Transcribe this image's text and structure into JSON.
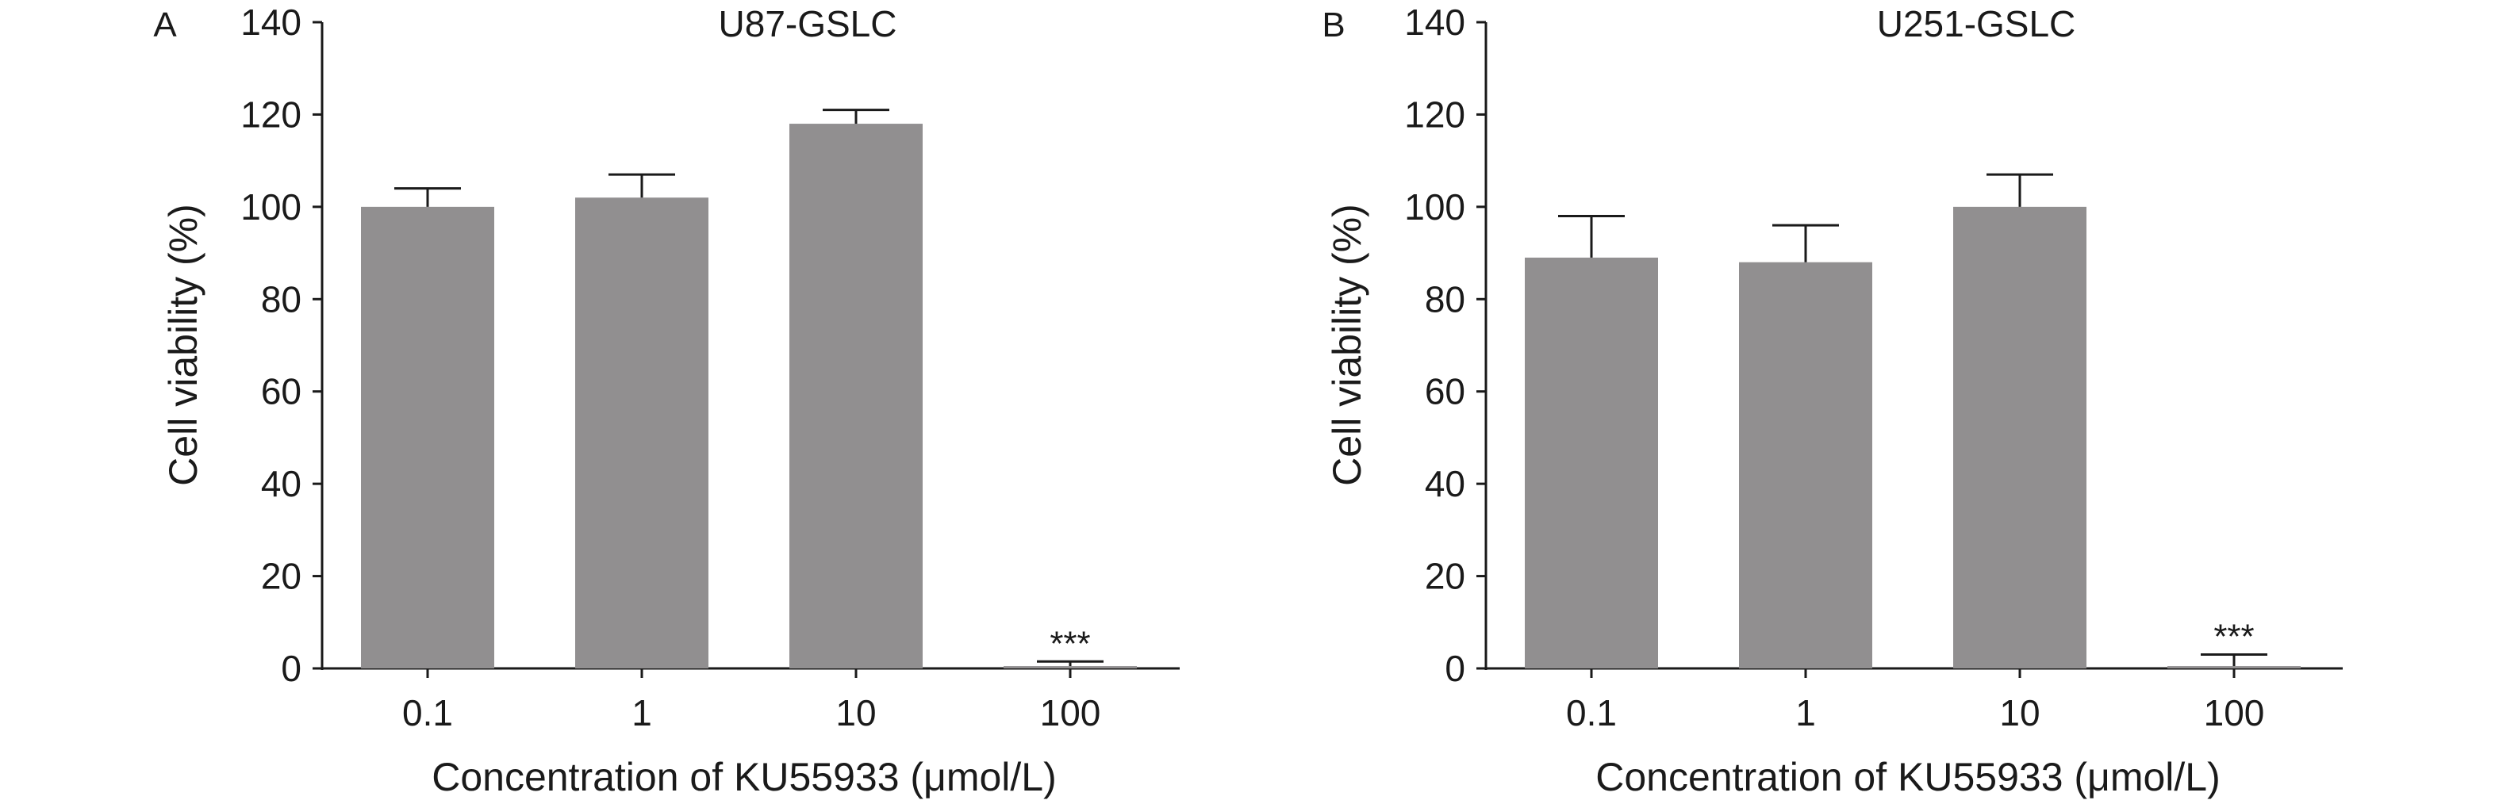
{
  "chart_data": [
    {
      "type": "bar",
      "panel_label": "A",
      "title": "U87-GSLC",
      "xlabel": "Concentration of KU55933 (μmol/L)",
      "ylabel": "Cell viability (%)",
      "ylim": [
        0,
        140
      ],
      "yticks": [
        0,
        20,
        40,
        60,
        80,
        100,
        120,
        140
      ],
      "categories": [
        "0.1",
        "1",
        "10",
        "100"
      ],
      "values": [
        100,
        102,
        118,
        0.5
      ],
      "errors": [
        4,
        5,
        3,
        1
      ],
      "annotations": [
        "",
        "",
        "",
        "***"
      ],
      "bar_color": "#918f90",
      "grid": false
    },
    {
      "type": "bar",
      "panel_label": "B",
      "title": "U251-GSLC",
      "xlabel": "Concentration of KU55933 (μmol/L)",
      "ylabel": "Cell viability (%)",
      "ylim": [
        0,
        140
      ],
      "yticks": [
        0,
        20,
        40,
        60,
        80,
        100,
        120,
        140
      ],
      "categories": [
        "0.1",
        "1",
        "10",
        "100"
      ],
      "values": [
        89,
        88,
        100,
        0.5
      ],
      "errors": [
        9,
        8,
        7,
        2.5
      ],
      "annotations": [
        "",
        "",
        "",
        "***"
      ],
      "bar_color": "#918f90",
      "grid": false
    }
  ]
}
